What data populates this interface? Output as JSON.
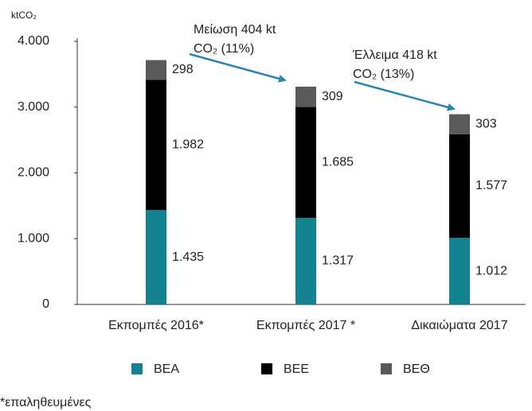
{
  "chart_data": {
    "type": "stacked_bar",
    "y_axis_label": "ktCO₂",
    "categories": [
      "Εκπομπές 2016*",
      "Εκπομπές 2017 *",
      "Δικαιώματα 2017"
    ],
    "series": [
      {
        "name": "ΒΕΑ",
        "color": "#13838f",
        "values": [
          1435,
          1317,
          1012
        ],
        "value_labels": [
          "1.435",
          "1.317",
          "1.012"
        ]
      },
      {
        "name": "ΒΕΕ",
        "color": "#000000",
        "values": [
          1982,
          1685,
          1577
        ],
        "value_labels": [
          "1.982",
          "1.685",
          "1.577"
        ]
      },
      {
        "name": "ΒΕΘ",
        "color": "#5a5a5a",
        "values": [
          298,
          309,
          303
        ]
      }
    ],
    "ylim": [
      0,
      4000
    ],
    "yticks": [
      0,
      {
        "value": 1000,
        "label": "1.000"
      },
      {
        "value": 2000,
        "label": "2.000"
      },
      {
        "value": 3000,
        "label": "3.000"
      },
      {
        "value": 4000,
        "label": "4.000"
      }
    ],
    "annotations": [
      {
        "line1": "Μείωση 404 kt",
        "line2": "CO₂ (11%)"
      },
      {
        "line1": "Έλλειμα 418 kt",
        "line2": "CO₂ (13%)"
      }
    ],
    "footnote": "*επαληθευμένες"
  }
}
